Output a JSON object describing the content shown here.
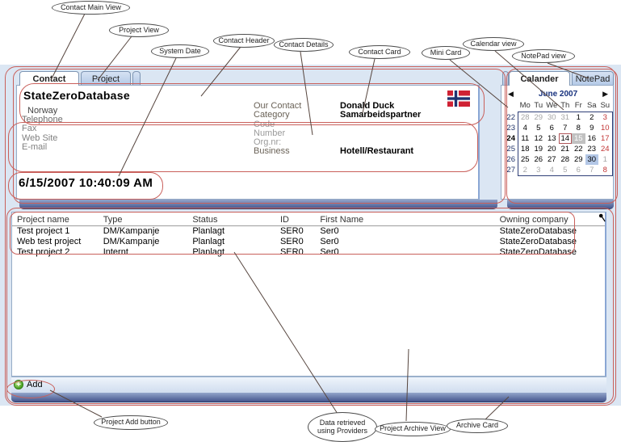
{
  "callouts": [
    {
      "label": "Contact Main View"
    },
    {
      "label": "Project View"
    },
    {
      "label": "System Date"
    },
    {
      "label": "Contact Header"
    },
    {
      "label": "Contact Details"
    },
    {
      "label": "Contact Card"
    },
    {
      "label": "Mini Card"
    },
    {
      "label": "Calendar view"
    },
    {
      "label": "NotePad view"
    },
    {
      "label": "Project Add button"
    },
    {
      "label": "Data retrieved using Providers"
    },
    {
      "label": "Project Archive View"
    },
    {
      "label": "Archive Card"
    }
  ],
  "main_tabs": [
    {
      "label": "Contact"
    },
    {
      "label": "Project"
    }
  ],
  "side_tabs": [
    {
      "label": "Calander"
    },
    {
      "label": "NotePad"
    }
  ],
  "contact_card": {
    "company": "StateZeroDatabase",
    "country": "Norway",
    "fields_left": [
      "Telephone",
      "Fax",
      "Web Site",
      "E-mail"
    ],
    "fields_right": [
      {
        "label": "Our Contact",
        "value": "Donald Duck",
        "bold": true
      },
      {
        "label": "Category",
        "value": "Samarbeidspartner",
        "bold": true
      },
      {
        "label": "Code",
        "value": "",
        "dim": true
      },
      {
        "label": "Number",
        "value": "",
        "dim": true
      },
      {
        "label": "Org.nr:",
        "value": "",
        "dim": true
      },
      {
        "label": "Business",
        "value": "Hotell/Restaurant",
        "bold": true
      }
    ],
    "flag": "norway-flag",
    "system_date": "6/15/2007 10:40:09 AM"
  },
  "calendar": {
    "prev_icon": "◀",
    "title": "June 2007",
    "next_icon": "▶",
    "day_headers": [
      "Mo",
      "Tu",
      "We",
      "Th",
      "Fr",
      "Sa",
      "Su"
    ],
    "weeks": [
      {
        "num": "22",
        "days": [
          {
            "d": "28",
            "muted": 1
          },
          {
            "d": "29",
            "muted": 1
          },
          {
            "d": "30",
            "muted": 1
          },
          {
            "d": "31",
            "muted": 1
          },
          {
            "d": "1"
          },
          {
            "d": "2"
          },
          {
            "d": "3",
            "red": 1
          }
        ]
      },
      {
        "num": "23",
        "days": [
          {
            "d": "4"
          },
          {
            "d": "5"
          },
          {
            "d": "6"
          },
          {
            "d": "7"
          },
          {
            "d": "8"
          },
          {
            "d": "9"
          },
          {
            "d": "10",
            "red": 1
          }
        ]
      },
      {
        "num": "24",
        "bold": true,
        "days": [
          {
            "d": "11"
          },
          {
            "d": "12"
          },
          {
            "d": "13"
          },
          {
            "d": "14",
            "boxed": 1
          },
          {
            "d": "15",
            "selected": 1
          },
          {
            "d": "16"
          },
          {
            "d": "17",
            "red": 1
          }
        ]
      },
      {
        "num": "25",
        "days": [
          {
            "d": "18"
          },
          {
            "d": "19"
          },
          {
            "d": "20"
          },
          {
            "d": "21"
          },
          {
            "d": "22"
          },
          {
            "d": "23"
          },
          {
            "d": "24",
            "red": 1
          }
        ]
      },
      {
        "num": "26",
        "days": [
          {
            "d": "25"
          },
          {
            "d": "26"
          },
          {
            "d": "27"
          },
          {
            "d": "28"
          },
          {
            "d": "29"
          },
          {
            "d": "30",
            "highlight": 1
          },
          {
            "d": "1",
            "muted": 1
          }
        ]
      },
      {
        "num": "27",
        "days": [
          {
            "d": "2",
            "muted": 1
          },
          {
            "d": "3",
            "muted": 1
          },
          {
            "d": "4",
            "muted": 1
          },
          {
            "d": "5",
            "muted": 1
          },
          {
            "d": "6",
            "muted": 1
          },
          {
            "d": "7",
            "muted": 1
          },
          {
            "d": "8",
            "red": 1
          }
        ]
      }
    ]
  },
  "archive": {
    "columns": [
      "Project name",
      "Type",
      "Status",
      "ID",
      "First Name",
      "Owning company"
    ],
    "rows": [
      [
        "Test project 1",
        "DM/Kampanje",
        "Planlagt",
        "SER0",
        "Ser0",
        "StateZeroDatabase"
      ],
      [
        "Web test project",
        "DM/Kampanje",
        "Planlagt",
        "SER0",
        "Ser0",
        "StateZeroDatabase"
      ],
      [
        "Test project 2",
        "Internt",
        "Planlagt",
        "SER0",
        "Ser0",
        "StateZeroDatabase"
      ]
    ],
    "add_label": "Add"
  },
  "colors": {
    "annotation_red": "#c9605b",
    "window_bg": "#dbe6f3",
    "calendar_navy": "#17317d",
    "weekend_red": "#c23434",
    "selected_day_bg": "#c1c1c1",
    "highlight_day_bg": "#b3c7e6"
  }
}
